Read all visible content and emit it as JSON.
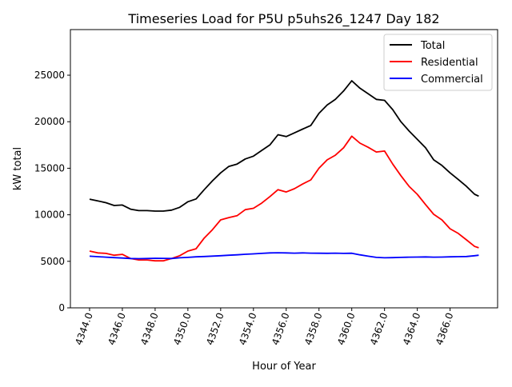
{
  "chart_data": {
    "type": "line",
    "title": "Timeseries Load for P5U p5uhs26_1247  Day 182",
    "xlabel": "Hour of Year",
    "ylabel": "kW total",
    "xlim": [
      4342.83,
      4368.9
    ],
    "ylim": [
      0,
      29900
    ],
    "xticks": [
      4344,
      4346,
      4348,
      4350,
      4352,
      4354,
      4356,
      4358,
      4360,
      4362,
      4364,
      4366
    ],
    "xtick_labels": [
      "4344.0",
      "4346.0",
      "4348.0",
      "4350.0",
      "4352.0",
      "4354.0",
      "4356.0",
      "4358.0",
      "4360.0",
      "4362.0",
      "4364.0",
      "4366.0"
    ],
    "yticks": [
      0,
      5000,
      10000,
      15000,
      20000,
      25000
    ],
    "ytick_labels": [
      "0",
      "5000",
      "10000",
      "15000",
      "20000",
      "25000"
    ],
    "legend_position": "top-right",
    "grid": false,
    "x": [
      4344,
      4344.5,
      4345,
      4345.5,
      4346,
      4346.5,
      4347,
      4347.5,
      4348,
      4348.5,
      4349,
      4349.5,
      4350,
      4350.5,
      4351,
      4351.5,
      4352,
      4352.5,
      4353,
      4353.5,
      4354,
      4354.5,
      4355,
      4355.5,
      4356,
      4356.5,
      4357,
      4357.5,
      4358,
      4358.5,
      4359,
      4359.5,
      4360,
      4360.5,
      4361,
      4361.5,
      4362,
      4362.5,
      4363,
      4363.5,
      4364,
      4364.5,
      4365,
      4365.5,
      4366,
      4366.5,
      4367,
      4367.5,
      4367.75
    ],
    "series": [
      {
        "name": "Total",
        "color": "#000000",
        "values": [
          11680,
          11500,
          11300,
          11000,
          11050,
          10600,
          10450,
          10450,
          10400,
          10400,
          10500,
          10800,
          11400,
          11700,
          12700,
          13650,
          14500,
          15200,
          15450,
          16000,
          16300,
          16900,
          17500,
          18600,
          18400,
          18800,
          19200,
          19600,
          20900,
          21800,
          22400,
          23300,
          24400,
          23600,
          23000,
          22400,
          22300,
          21300,
          20000,
          19000,
          18100,
          17200,
          15900,
          15300,
          14500,
          13800,
          13050,
          12200,
          12000
        ]
      },
      {
        "name": "Residential",
        "color": "#ff0000",
        "values": [
          6100,
          5900,
          5850,
          5650,
          5750,
          5300,
          5150,
          5150,
          5050,
          5050,
          5300,
          5600,
          6100,
          6350,
          7500,
          8400,
          9450,
          9700,
          9900,
          10550,
          10700,
          11250,
          11950,
          12700,
          12450,
          12800,
          13300,
          13750,
          15000,
          15900,
          16400,
          17200,
          18450,
          17700,
          17250,
          16750,
          16850,
          15450,
          14200,
          13050,
          12200,
          11100,
          10050,
          9450,
          8500,
          8000,
          7300,
          6600,
          6450
        ]
      },
      {
        "name": "Commercial",
        "color": "#0000ff",
        "values": [
          5550,
          5500,
          5450,
          5400,
          5350,
          5300,
          5280,
          5300,
          5330,
          5320,
          5300,
          5380,
          5420,
          5480,
          5520,
          5560,
          5600,
          5650,
          5700,
          5760,
          5800,
          5850,
          5900,
          5920,
          5900,
          5880,
          5900,
          5880,
          5870,
          5860,
          5880,
          5850,
          5870,
          5700,
          5550,
          5420,
          5380,
          5400,
          5420,
          5450,
          5460,
          5470,
          5450,
          5460,
          5480,
          5500,
          5520,
          5600,
          5650
        ]
      }
    ]
  }
}
